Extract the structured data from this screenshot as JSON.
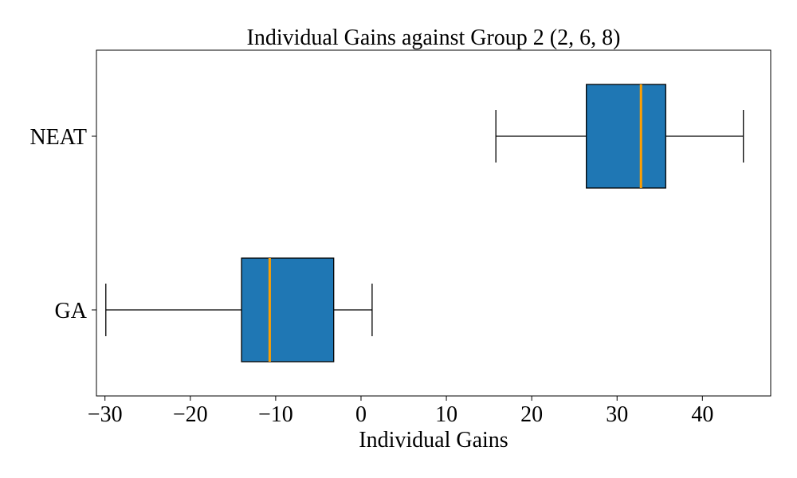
{
  "chart_data": {
    "type": "boxplot",
    "orientation": "horizontal",
    "title": "Individual Gains against Group 2 (2, 6, 8)",
    "xlabel": "Individual Gains",
    "ylabel": "",
    "xlim": [
      -31,
      48
    ],
    "xticks": [
      -30,
      -20,
      -10,
      0,
      10,
      20,
      30,
      40
    ],
    "xtick_labels": [
      "−30",
      "−20",
      "−10",
      "0",
      "10",
      "20",
      "30",
      "40"
    ],
    "grid": false,
    "legend": "none",
    "colors": {
      "box_fill": "#1f77b4",
      "median": "#ff9f00",
      "lines": "#000000"
    },
    "categories": [
      "NEAT",
      "GA"
    ],
    "boxes": [
      {
        "label": "NEAT",
        "whisker_low": 15.8,
        "q1": 26.4,
        "median": 32.8,
        "q3": 35.7,
        "whisker_high": 44.8
      },
      {
        "label": "GA",
        "whisker_low": -29.9,
        "q1": -14.0,
        "median": -10.7,
        "q3": -3.2,
        "whisker_high": 1.3
      }
    ]
  }
}
